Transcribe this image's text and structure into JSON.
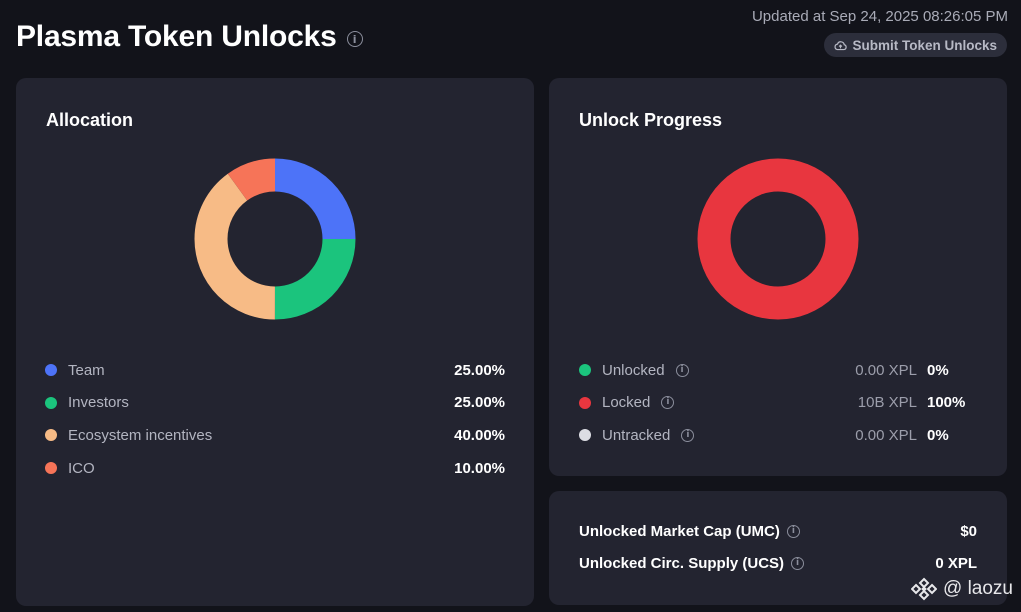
{
  "header": {
    "title": "Plasma Token Unlocks",
    "updated": "Updated at Sep 24, 2025 08:26:05 PM",
    "submit_label": "Submit Token Unlocks"
  },
  "allocation": {
    "title": "Allocation",
    "items": [
      {
        "label": "Team",
        "value": "25.00%",
        "color": "#4d73f8"
      },
      {
        "label": "Investors",
        "value": "25.00%",
        "color": "#1bc47d"
      },
      {
        "label": "Ecosystem incentives",
        "value": "40.00%",
        "color": "#f7bb86"
      },
      {
        "label": "ICO",
        "value": "10.00%",
        "color": "#f67458"
      }
    ]
  },
  "progress": {
    "title": "Unlock Progress",
    "items": [
      {
        "label": "Unlocked",
        "amount": "0.00 XPL",
        "pct": "0%",
        "color": "#1bc47d"
      },
      {
        "label": "Locked",
        "amount": "10B XPL",
        "pct": "100%",
        "color": "#e8363f"
      },
      {
        "label": "Untracked",
        "amount": "0.00 XPL",
        "pct": "0%",
        "color": "#dcdde3"
      }
    ]
  },
  "stats": {
    "umc_label": "Unlocked Market Cap (UMC)",
    "umc_value": "$0",
    "ucs_label": "Unlocked Circ. Supply (UCS)",
    "ucs_value": "0 XPL"
  },
  "watermark": {
    "handle": "@ laozu"
  },
  "icons": [
    "info-icon",
    "cloud-upload-icon",
    "binance-logo-icon"
  ]
}
